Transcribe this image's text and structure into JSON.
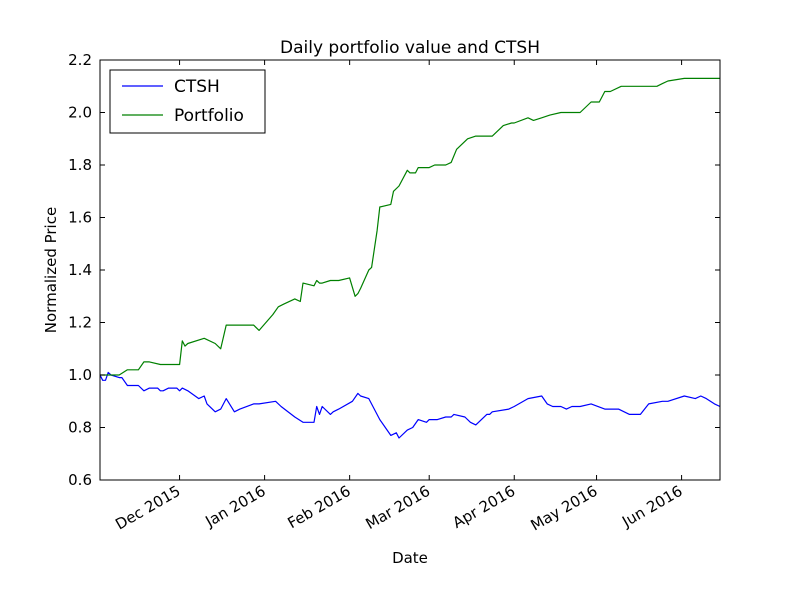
{
  "chart_data": {
    "type": "line",
    "title": "Daily portfolio value and CTSH",
    "xlabel": "Date",
    "ylabel": "Normalized Price",
    "ylim": [
      0.6,
      2.2
    ],
    "y_ticks": [
      0.6,
      0.8,
      1.0,
      1.2,
      1.4,
      1.6,
      1.8,
      2.0,
      2.2
    ],
    "y_tick_labels": [
      "0.6",
      "0.8",
      "1.0",
      "1.2",
      "1.4",
      "1.6",
      "1.8",
      "2.0",
      "2.2"
    ],
    "xlim": [
      "2015-11-02",
      "2016-06-15"
    ],
    "x_ticks": [
      "2015-12-01",
      "2016-01-01",
      "2016-02-01",
      "2016-03-01",
      "2016-04-01",
      "2016-05-01",
      "2016-06-01"
    ],
    "x_tick_labels": [
      "Dec 2015",
      "Jan 2016",
      "Feb 2016",
      "Mar 2016",
      "Apr 2016",
      "May 2016",
      "Jun 2016"
    ],
    "grid": false,
    "legend_position": "top-left",
    "series": [
      {
        "name": "CTSH",
        "color": "#0000ff",
        "x": [
          "2015-11-02",
          "2015-11-03",
          "2015-11-04",
          "2015-11-05",
          "2015-11-06",
          "2015-11-09",
          "2015-11-10",
          "2015-11-12",
          "2015-11-16",
          "2015-11-18",
          "2015-11-20",
          "2015-11-23",
          "2015-11-24",
          "2015-11-25",
          "2015-11-27",
          "2015-11-30",
          "2015-12-01",
          "2015-12-02",
          "2015-12-04",
          "2015-12-08",
          "2015-12-10",
          "2015-12-11",
          "2015-12-14",
          "2015-12-16",
          "2015-12-18",
          "2015-12-21",
          "2015-12-23",
          "2015-12-28",
          "2015-12-29",
          "2015-12-30",
          "2016-01-05",
          "2016-01-07",
          "2016-01-12",
          "2016-01-15",
          "2016-01-19",
          "2016-01-20",
          "2016-01-21",
          "2016-01-22",
          "2016-01-25",
          "2016-01-26",
          "2016-01-28",
          "2016-02-02",
          "2016-02-04",
          "2016-02-05",
          "2016-02-08",
          "2016-02-10",
          "2016-02-12",
          "2016-02-16",
          "2016-02-18",
          "2016-02-19",
          "2016-02-22",
          "2016-02-24",
          "2016-02-26",
          "2016-02-29",
          "2016-03-01",
          "2016-03-04",
          "2016-03-07",
          "2016-03-09",
          "2016-03-10",
          "2016-03-14",
          "2016-03-16",
          "2016-03-18",
          "2016-03-22",
          "2016-03-23",
          "2016-03-24",
          "2016-03-30",
          "2016-04-01",
          "2016-04-06",
          "2016-04-11",
          "2016-04-13",
          "2016-04-15",
          "2016-04-18",
          "2016-04-20",
          "2016-04-22",
          "2016-04-25",
          "2016-04-29",
          "2016-05-04",
          "2016-05-09",
          "2016-05-13",
          "2016-05-17",
          "2016-05-20",
          "2016-05-25",
          "2016-05-27",
          "2016-06-02",
          "2016-06-06",
          "2016-06-08",
          "2016-06-10",
          "2016-06-13",
          "2016-06-15"
        ],
        "y": [
          1.0,
          0.98,
          0.98,
          1.01,
          1.0,
          0.99,
          0.99,
          0.96,
          0.96,
          0.94,
          0.95,
          0.95,
          0.94,
          0.94,
          0.95,
          0.95,
          0.94,
          0.95,
          0.94,
          0.91,
          0.92,
          0.89,
          0.86,
          0.87,
          0.91,
          0.86,
          0.87,
          0.89,
          0.89,
          0.89,
          0.9,
          0.88,
          0.84,
          0.82,
          0.82,
          0.88,
          0.85,
          0.88,
          0.85,
          0.86,
          0.87,
          0.9,
          0.93,
          0.92,
          0.91,
          0.87,
          0.83,
          0.77,
          0.78,
          0.76,
          0.79,
          0.8,
          0.83,
          0.82,
          0.83,
          0.83,
          0.84,
          0.84,
          0.85,
          0.84,
          0.82,
          0.81,
          0.85,
          0.85,
          0.86,
          0.87,
          0.88,
          0.91,
          0.92,
          0.89,
          0.88,
          0.88,
          0.87,
          0.88,
          0.88,
          0.89,
          0.87,
          0.87,
          0.85,
          0.85,
          0.89,
          0.9,
          0.9,
          0.92,
          0.91,
          0.92,
          0.91,
          0.89,
          0.88
        ]
      },
      {
        "name": "Portfolio",
        "color": "#008000",
        "x": [
          "2015-11-02",
          "2015-11-05",
          "2015-11-09",
          "2015-11-12",
          "2015-11-16",
          "2015-11-18",
          "2015-11-20",
          "2015-11-24",
          "2015-11-27",
          "2015-11-30",
          "2015-12-01",
          "2015-12-02",
          "2015-12-03",
          "2015-12-04",
          "2015-12-10",
          "2015-12-14",
          "2015-12-16",
          "2015-12-18",
          "2015-12-21",
          "2015-12-23",
          "2015-12-28",
          "2015-12-30",
          "2016-01-04",
          "2016-01-06",
          "2016-01-08",
          "2016-01-12",
          "2016-01-14",
          "2016-01-15",
          "2016-01-19",
          "2016-01-20",
          "2016-01-21",
          "2016-01-22",
          "2016-01-25",
          "2016-01-26",
          "2016-01-28",
          "2016-02-01",
          "2016-02-03",
          "2016-02-04",
          "2016-02-05",
          "2016-02-08",
          "2016-02-09",
          "2016-02-11",
          "2016-02-12",
          "2016-02-16",
          "2016-02-17",
          "2016-02-19",
          "2016-02-22",
          "2016-02-23",
          "2016-02-25",
          "2016-02-26",
          "2016-03-01",
          "2016-03-03",
          "2016-03-07",
          "2016-03-09",
          "2016-03-11",
          "2016-03-15",
          "2016-03-18",
          "2016-03-21",
          "2016-03-23",
          "2016-03-24",
          "2016-03-28",
          "2016-03-31",
          "2016-04-01",
          "2016-04-06",
          "2016-04-08",
          "2016-04-11",
          "2016-04-14",
          "2016-04-18",
          "2016-04-21",
          "2016-04-25",
          "2016-04-29",
          "2016-05-02",
          "2016-05-04",
          "2016-05-06",
          "2016-05-10",
          "2016-05-13",
          "2016-05-16",
          "2016-05-20",
          "2016-05-23",
          "2016-05-25",
          "2016-05-27",
          "2016-06-02",
          "2016-06-06",
          "2016-06-08",
          "2016-06-09",
          "2016-06-15"
        ],
        "y": [
          1.0,
          1.0,
          1.0,
          1.02,
          1.02,
          1.05,
          1.05,
          1.04,
          1.04,
          1.04,
          1.04,
          1.13,
          1.11,
          1.12,
          1.14,
          1.12,
          1.1,
          1.19,
          1.19,
          1.19,
          1.19,
          1.17,
          1.23,
          1.26,
          1.27,
          1.29,
          1.28,
          1.35,
          1.34,
          1.36,
          1.35,
          1.35,
          1.36,
          1.36,
          1.36,
          1.37,
          1.3,
          1.31,
          1.33,
          1.4,
          1.41,
          1.55,
          1.64,
          1.65,
          1.7,
          1.72,
          1.78,
          1.77,
          1.77,
          1.79,
          1.79,
          1.8,
          1.8,
          1.81,
          1.86,
          1.9,
          1.91,
          1.91,
          1.91,
          1.91,
          1.95,
          1.96,
          1.96,
          1.98,
          1.97,
          1.98,
          1.99,
          2.0,
          2.0,
          2.0,
          2.04,
          2.04,
          2.08,
          2.08,
          2.1,
          2.1,
          2.1,
          2.1,
          2.1,
          2.11,
          2.12,
          2.13,
          2.13,
          2.13,
          2.13,
          2.13
        ]
      }
    ]
  }
}
